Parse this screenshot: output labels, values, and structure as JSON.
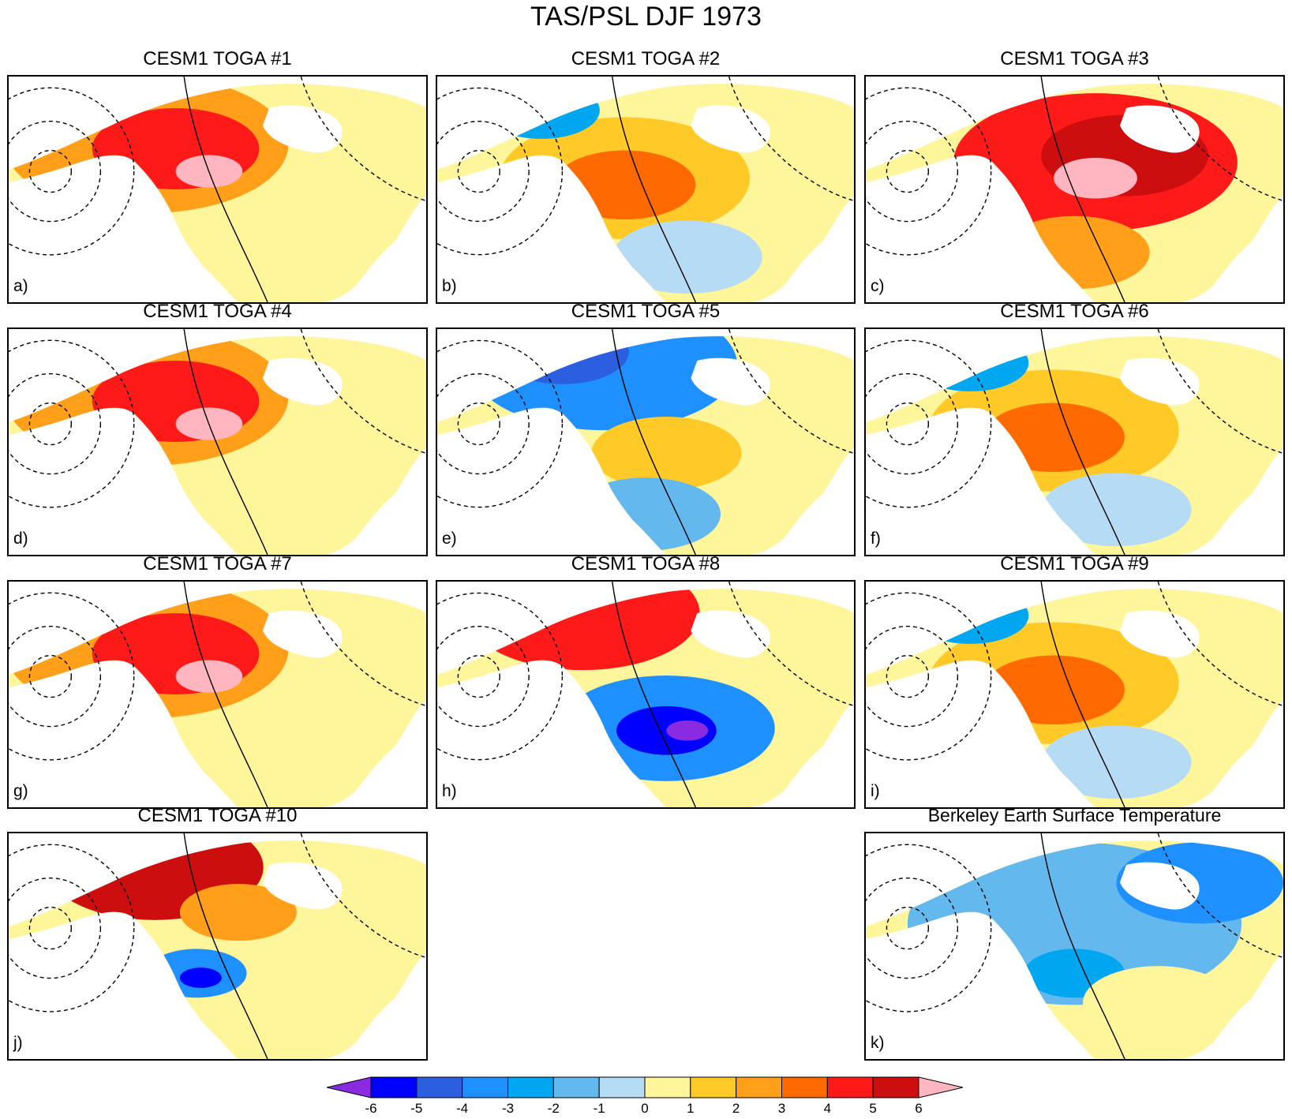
{
  "title": "TAS/PSL DJF 1973",
  "panels": [
    {
      "title": "CESM1 TOGA #1",
      "letter": "a)"
    },
    {
      "title": "CESM1 TOGA #2",
      "letter": "b)"
    },
    {
      "title": "CESM1 TOGA #3",
      "letter": "c)"
    },
    {
      "title": "CESM1 TOGA #4",
      "letter": "d)"
    },
    {
      "title": "CESM1 TOGA #5",
      "letter": "e)"
    },
    {
      "title": "CESM1 TOGA #6",
      "letter": "f)"
    },
    {
      "title": "CESM1 TOGA #7",
      "letter": "g)"
    },
    {
      "title": "CESM1 TOGA #8",
      "letter": "h)"
    },
    {
      "title": "CESM1 TOGA #9",
      "letter": "i)"
    },
    {
      "title": "CESM1 TOGA #10",
      "letter": "j)"
    },
    {
      "title": "Berkeley Earth Surface Temperature",
      "letter": "k)"
    }
  ],
  "colorbar": {
    "labels": [
      "-6",
      "-5",
      "-4",
      "-3",
      "-2",
      "-1",
      "0",
      "1",
      "2",
      "3",
      "4",
      "5",
      "6"
    ],
    "colors": [
      "#8a2be2",
      "#0000ff",
      "#2b5fe0",
      "#1e90ff",
      "#00a6f0",
      "#63b8ee",
      "#b6dcf5",
      "#fff59a",
      "#ffc928",
      "#ff9f1a",
      "#ff6a00",
      "#ff1a1a",
      "#cc0e0e",
      "#ffb6c1"
    ]
  }
}
